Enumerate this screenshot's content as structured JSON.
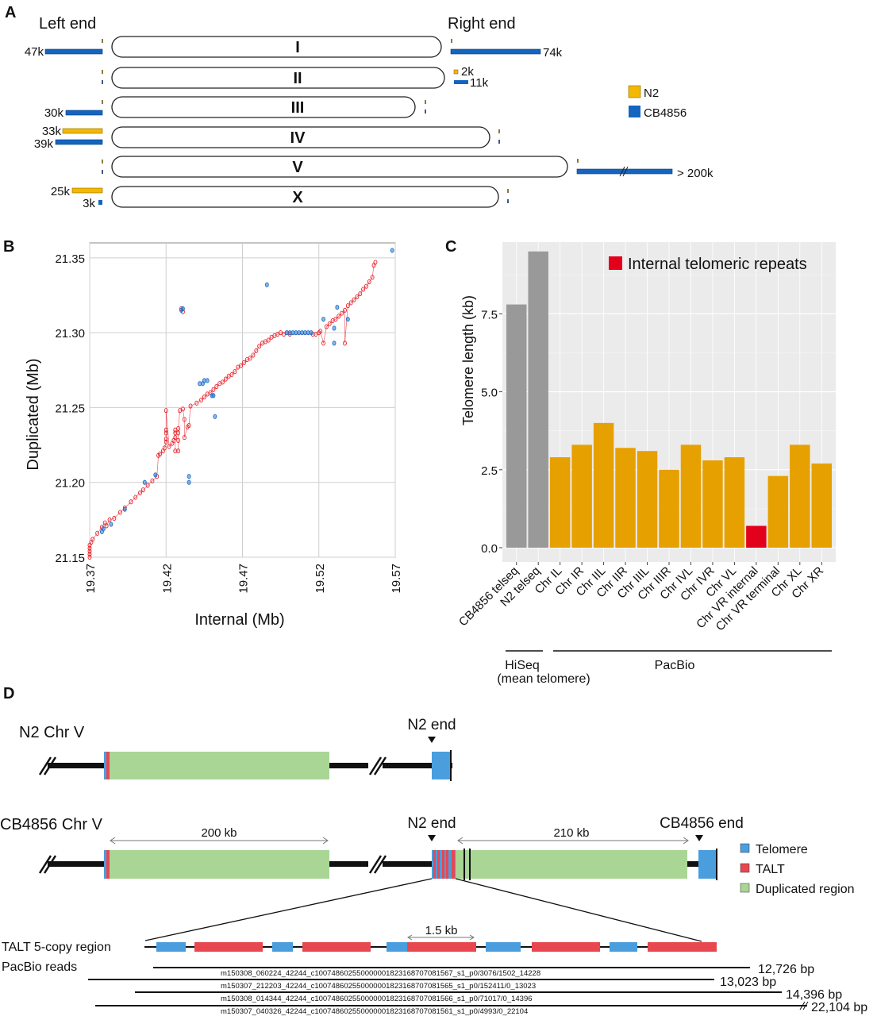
{
  "panel_a": {
    "letter": "A",
    "left_end_label": "Left end",
    "right_end_label": "Right end",
    "legend": [
      {
        "name": "N2",
        "color": "#f5b800"
      },
      {
        "name": "CB4856",
        "color": "#1565c0"
      }
    ],
    "chromosomes": [
      {
        "name": "I",
        "left": [
          {
            "strain": "CB4856",
            "length_k": 47,
            "label": "47k"
          }
        ],
        "right": [
          {
            "strain": "CB4856",
            "length_k": 74,
            "label": "74k"
          }
        ]
      },
      {
        "name": "II",
        "left": [],
        "right": [
          {
            "strain": "N2",
            "length_k": 2,
            "label": "2k"
          },
          {
            "strain": "CB4856",
            "length_k": 11,
            "label": "11k"
          }
        ]
      },
      {
        "name": "III",
        "left": [
          {
            "strain": "CB4856",
            "length_k": 30,
            "label": "30k"
          }
        ],
        "right": []
      },
      {
        "name": "IV",
        "left": [
          {
            "strain": "N2",
            "length_k": 33,
            "label": "33k"
          },
          {
            "strain": "CB4856",
            "length_k": 39,
            "label": "39k"
          }
        ],
        "right": []
      },
      {
        "name": "V",
        "left": [],
        "right": [
          {
            "strain": "CB4856",
            "length_k": 200,
            "label": "> 200k",
            "broken": true
          }
        ]
      },
      {
        "name": "X",
        "left": [
          {
            "strain": "N2",
            "length_k": 25,
            "label": "25k"
          },
          {
            "strain": "CB4856",
            "length_k": 3,
            "label": "3k"
          }
        ],
        "right": []
      }
    ]
  },
  "chart_data": [
    {
      "panel": "B",
      "type": "scatter",
      "title": "",
      "xlabel": "Internal (Mb)",
      "ylabel": "Duplicated (Mb)",
      "xlim": [
        19.37,
        19.57
      ],
      "ylim": [
        21.15,
        21.36
      ],
      "xticks": [
        "19.37",
        "19.42",
        "19.47",
        "19.52",
        "19.57"
      ],
      "yticks": [
        "21.15",
        "21.20",
        "21.25",
        "21.30",
        "21.35"
      ],
      "grid": true,
      "series": [
        {
          "name": "forward",
          "color": "#e8202a",
          "points": [
            [
              19.37,
              21.15
            ],
            [
              19.37,
              21.152
            ],
            [
              19.37,
              21.154
            ],
            [
              19.37,
              21.156
            ],
            [
              19.37,
              21.158
            ],
            [
              19.371,
              21.16
            ],
            [
              19.372,
              21.162
            ],
            [
              19.375,
              21.166
            ],
            [
              19.378,
              21.17
            ],
            [
              19.38,
              21.173
            ],
            [
              19.381,
              21.171
            ],
            [
              19.383,
              21.175
            ],
            [
              19.386,
              21.176
            ],
            [
              19.39,
              21.18
            ],
            [
              19.393,
              21.183
            ],
            [
              19.397,
              21.187
            ],
            [
              19.4,
              21.19
            ],
            [
              19.403,
              21.193
            ],
            [
              19.405,
              21.195
            ],
            [
              19.408,
              21.198
            ],
            [
              19.411,
              21.201
            ],
            [
              19.414,
              21.204
            ],
            [
              19.415,
              21.218
            ],
            [
              19.416,
              21.219
            ],
            [
              19.418,
              21.221
            ],
            [
              19.419,
              21.223
            ],
            [
              19.42,
              21.227
            ],
            [
              19.42,
              21.229
            ],
            [
              19.42,
              21.233
            ],
            [
              19.42,
              21.235
            ],
            [
              19.42,
              21.248
            ],
            [
              19.422,
              21.224
            ],
            [
              19.424,
              21.226
            ],
            [
              19.425,
              21.228
            ],
            [
              19.426,
              21.23
            ],
            [
              19.426,
              21.233
            ],
            [
              19.426,
              21.235
            ],
            [
              19.426,
              21.221
            ],
            [
              19.428,
              21.221
            ],
            [
              19.428,
              21.228
            ],
            [
              19.428,
              21.233
            ],
            [
              19.428,
              21.236
            ],
            [
              19.429,
              21.248
            ],
            [
              19.431,
              21.249
            ],
            [
              19.432,
              21.242
            ],
            [
              19.432,
              21.23
            ],
            [
              19.434,
              21.237
            ],
            [
              19.435,
              21.238
            ],
            [
              19.436,
              21.251
            ],
            [
              19.44,
              21.253
            ],
            [
              19.443,
              21.255
            ],
            [
              19.445,
              21.257
            ],
            [
              19.447,
              21.259
            ],
            [
              19.449,
              21.26
            ],
            [
              19.451,
              21.262
            ],
            [
              19.453,
              21.264
            ],
            [
              19.455,
              21.266
            ],
            [
              19.457,
              21.267
            ],
            [
              19.459,
              21.269
            ],
            [
              19.461,
              21.271
            ],
            [
              19.463,
              21.272
            ],
            [
              19.465,
              21.274
            ],
            [
              19.467,
              21.277
            ],
            [
              19.469,
              21.278
            ],
            [
              19.471,
              21.28
            ],
            [
              19.473,
              21.282
            ],
            [
              19.475,
              21.283
            ],
            [
              19.477,
              21.285
            ],
            [
              19.479,
              21.288
            ],
            [
              19.481,
              21.291
            ],
            [
              19.483,
              21.293
            ],
            [
              19.485,
              21.294
            ],
            [
              19.487,
              21.295
            ],
            [
              19.489,
              21.297
            ],
            [
              19.491,
              21.298
            ],
            [
              19.493,
              21.299
            ],
            [
              19.495,
              21.3
            ],
            [
              19.497,
              21.299
            ],
            [
              19.499,
              21.3
            ],
            [
              19.501,
              21.299
            ],
            [
              19.516,
              21.299
            ],
            [
              19.518,
              21.299
            ],
            [
              19.52,
              21.3
            ],
            [
              19.521,
              21.301
            ],
            [
              19.523,
              21.293
            ],
            [
              19.525,
              21.304
            ],
            [
              19.527,
              21.306
            ],
            [
              19.529,
              21.308
            ],
            [
              19.531,
              21.309
            ],
            [
              19.533,
              21.311
            ],
            [
              19.535,
              21.313
            ],
            [
              19.537,
              21.315
            ],
            [
              19.539,
              21.318
            ],
            [
              19.541,
              21.32
            ],
            [
              19.543,
              21.322
            ],
            [
              19.545,
              21.324
            ],
            [
              19.547,
              21.326
            ],
            [
              19.549,
              21.329
            ],
            [
              19.551,
              21.331
            ],
            [
              19.553,
              21.334
            ],
            [
              19.555,
              21.337
            ],
            [
              19.556,
              21.345
            ],
            [
              19.557,
              21.347
            ],
            [
              19.537,
              21.293
            ],
            [
              19.43,
              21.316
            ],
            [
              19.431,
              21.314
            ]
          ]
        },
        {
          "name": "reverse",
          "color": "#1e6fcc",
          "points": [
            [
              19.378,
              21.167
            ],
            [
              19.379,
              21.169
            ],
            [
              19.384,
              21.172
            ],
            [
              19.393,
              21.182
            ],
            [
              19.406,
              21.2
            ],
            [
              19.413,
              21.205
            ],
            [
              19.43,
              21.315
            ],
            [
              19.431,
              21.316
            ],
            [
              19.435,
              21.204
            ],
            [
              19.435,
              21.2
            ],
            [
              19.442,
              21.266
            ],
            [
              19.444,
              21.266
            ],
            [
              19.445,
              21.268
            ],
            [
              19.447,
              21.268
            ],
            [
              19.45,
              21.258
            ],
            [
              19.451,
              21.258
            ],
            [
              19.452,
              21.244
            ],
            [
              19.486,
              21.332
            ],
            [
              19.499,
              21.3
            ],
            [
              19.501,
              21.3
            ],
            [
              19.503,
              21.3
            ],
            [
              19.505,
              21.3
            ],
            [
              19.507,
              21.3
            ],
            [
              19.509,
              21.3
            ],
            [
              19.511,
              21.3
            ],
            [
              19.513,
              21.3
            ],
            [
              19.515,
              21.3
            ],
            [
              19.523,
              21.309
            ],
            [
              19.53,
              21.303
            ],
            [
              19.53,
              21.293
            ],
            [
              19.532,
              21.317
            ],
            [
              19.539,
              21.309
            ],
            [
              19.568,
              21.355
            ]
          ]
        }
      ]
    },
    {
      "panel": "C",
      "type": "bar",
      "title": "",
      "xlabel": "",
      "ylabel": "Telomere length (kb)",
      "ylim": [
        0,
        9.8
      ],
      "yticks": [
        "0.0",
        "2.5",
        "5.0",
        "7.5"
      ],
      "grid": true,
      "legend": {
        "label": "Internal telomeric repeats",
        "color": "#e3001b",
        "position": "top-right"
      },
      "categories": [
        "CB4856 telseq",
        "N2 telseq",
        "Chr IL",
        "Chr IR",
        "Chr IIL",
        "Chr IIR",
        "Chr IIIL",
        "Chr IIIR",
        "Chr IVL",
        "Chr IVR",
        "Chr VL",
        "Chr VR internal",
        "Chr VR terminal",
        "Chr XL",
        "Chr XR"
      ],
      "values": [
        7.8,
        9.5,
        2.9,
        3.3,
        4.0,
        3.2,
        3.1,
        2.5,
        3.3,
        2.8,
        2.9,
        0.7,
        2.3,
        3.3,
        2.7
      ],
      "colors": [
        "#999999",
        "#999999",
        "#e6a000",
        "#e6a000",
        "#e6a000",
        "#e6a000",
        "#e6a000",
        "#e6a000",
        "#e6a000",
        "#e6a000",
        "#e6a000",
        "#e3001b",
        "#e6a000",
        "#e6a000",
        "#e6a000"
      ],
      "groups": [
        {
          "label": "HiSeq",
          "sublabel": "(mean telomere)",
          "from": 0,
          "to": 1
        },
        {
          "label": "PacBio",
          "sublabel": "",
          "from": 2,
          "to": 14
        }
      ]
    }
  ],
  "panel_b": {
    "letter": "B"
  },
  "panel_c": {
    "letter": "C"
  },
  "panel_d": {
    "letter": "D",
    "n2_track_label": "N2 Chr V",
    "cb_track_label": "CB4856 Chr V",
    "n2_end_label": "N2 end",
    "cb_end_label": "CB4856 end",
    "span_200": "200 kb",
    "span_210": "210 kb",
    "span_1_5": "1.5 kb",
    "talt_region_label": "TALT 5-copy region",
    "pacbio_label": "PacBio reads",
    "legend": [
      {
        "name": "Telomere",
        "color": "#4a9ede"
      },
      {
        "name": "TALT",
        "color": "#e8474f"
      },
      {
        "name": "Duplicated region",
        "color": "#a9d595"
      }
    ],
    "reads": [
      {
        "id": "m150308_060224_42244_c100748602550000001823168707081567_s1_p0/3076/1502_14228",
        "length_label": "12,726 bp"
      },
      {
        "id": "m150307_212203_42244_c100748602550000001823168707081565_s1_p0/152411/0_13023",
        "length_label": "13,023 bp"
      },
      {
        "id": "m150308_014344_42244_c100748602550000001823168707081566_s1_p0/71017/0_14396",
        "length_label": "14,396 bp"
      },
      {
        "id": "m150307_040326_42244_c100748602550000001823168707081561_s1_p0/4993/0_22104",
        "length_label": "22,104 bp"
      }
    ]
  }
}
